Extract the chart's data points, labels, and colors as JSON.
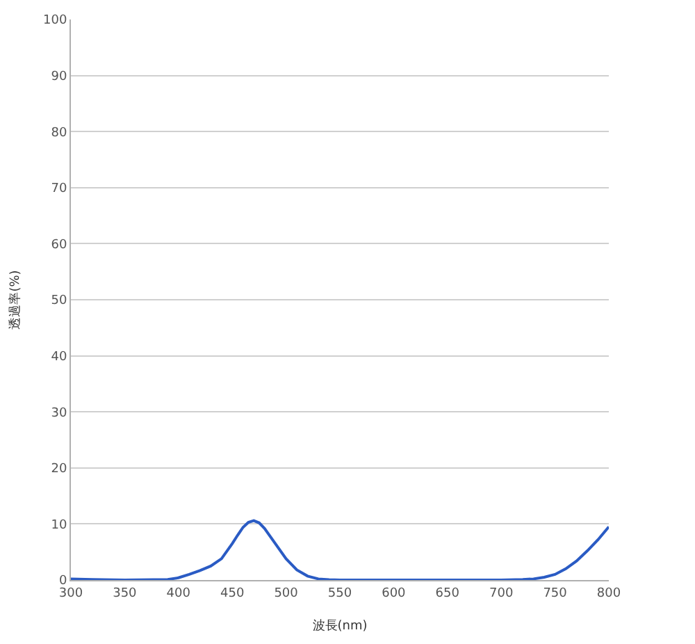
{
  "chart_data": {
    "type": "line",
    "xlabel": "波長(nm)",
    "ylabel": "透過率(%)",
    "x": [
      300,
      320,
      350,
      390,
      400,
      410,
      420,
      430,
      440,
      450,
      455,
      460,
      465,
      470,
      475,
      480,
      490,
      500,
      510,
      520,
      530,
      540,
      550,
      600,
      650,
      700,
      720,
      730,
      740,
      750,
      760,
      770,
      780,
      790,
      800
    ],
    "series": [
      {
        "color": "#2a5bc4",
        "values": [
          0.2,
          0.1,
          0,
          0.1,
          0.4,
          1.0,
          1.7,
          2.5,
          3.8,
          6.5,
          8.0,
          9.4,
          10.3,
          10.6,
          10.2,
          9.2,
          6.5,
          3.8,
          1.8,
          0.7,
          0.2,
          0.05,
          0,
          0,
          0,
          0,
          0.1,
          0.2,
          0.5,
          1.0,
          2.0,
          3.4,
          5.2,
          7.2,
          9.5
        ]
      }
    ],
    "xlim": [
      300,
      800
    ],
    "xticks": [
      300,
      350,
      400,
      450,
      500,
      550,
      600,
      650,
      700,
      750,
      800
    ],
    "ylim": [
      0,
      100
    ],
    "yticks": [
      0,
      10,
      20,
      30,
      40,
      50,
      60,
      70,
      80,
      90,
      100
    ],
    "grid": "y",
    "legend": false,
    "marker": "none",
    "line_style": "solid"
  }
}
